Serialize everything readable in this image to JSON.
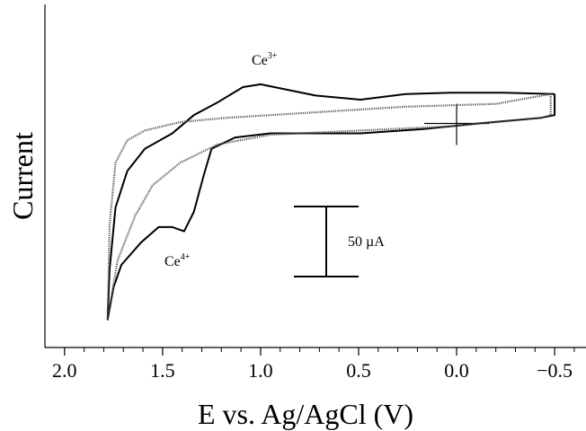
{
  "chart_data": {
    "type": "line",
    "xlabel": "E vs. Ag/AgCl (V)",
    "ylabel": "Current",
    "xlim": [
      2.1,
      -0.66
    ],
    "ylim": [
      -160,
      85
    ],
    "xticks": [
      {
        "value": 2,
        "label": "2.0"
      },
      1.5,
      {
        "value": 1,
        "label": "1.0"
      },
      0.5,
      {
        "value": 0,
        "label": "0.0"
      },
      {
        "value": -0.5,
        "label": "−0.5"
      }
    ],
    "minor_xticks": [
      1.9,
      1.8,
      1.7,
      1.6,
      1.4,
      1.3,
      1.2,
      1.1,
      0.9,
      0.8,
      0.7,
      0.6,
      0.4,
      0.3,
      0.2,
      0.1,
      -0.1,
      -0.2,
      -0.3,
      -0.4,
      -0.6
    ],
    "series": [
      {
        "style": "solid",
        "color": "#000000",
        "x": [
          -0.5,
          -0.24,
          0.03,
          0.26,
          0.49,
          0.72,
          0.86,
          1.0,
          1.09,
          1.22,
          1.34,
          1.45,
          1.59,
          1.68,
          1.74,
          1.77,
          1.78,
          1.75,
          1.71,
          1.61,
          1.52,
          1.45,
          1.39,
          1.34,
          1.29,
          1.25,
          1.13,
          0.95,
          0.49,
          0.17,
          -0.11,
          -0.43,
          -0.5,
          -0.5
        ],
        "values": [
          21,
          22,
          22,
          21,
          17,
          20,
          24,
          28,
          26,
          15,
          6,
          -7,
          -18,
          -34,
          -60,
          -104,
          -140,
          -117,
          -101,
          -85,
          -74,
          -74,
          -77,
          -63,
          -37,
          -18,
          -10,
          -7,
          -7,
          -4,
          0,
          4,
          6,
          21
        ]
      },
      {
        "style": "dotted",
        "color": "#555555",
        "x": [
          -0.48,
          -0.2,
          0.26,
          0.72,
          1.18,
          1.41,
          1.59,
          1.68,
          1.74,
          1.77,
          1.78,
          1.73,
          1.64,
          1.55,
          1.41,
          1.22,
          0.95,
          0.49,
          0.03,
          -0.43,
          -0.48,
          -0.48
        ],
        "values": [
          21,
          14,
          12,
          8,
          4,
          1,
          -5,
          -12,
          -28,
          -72,
          -140,
          -98,
          -66,
          -44,
          -28,
          -15,
          -8,
          -5,
          -2,
          4,
          6,
          21
        ]
      }
    ],
    "annotations": [
      {
        "text": "Ce",
        "sup": "3+"
      },
      {
        "text": "Ce",
        "sup": "4+"
      }
    ],
    "scale_bar": {
      "value": 50,
      "label": "50 µA"
    }
  }
}
